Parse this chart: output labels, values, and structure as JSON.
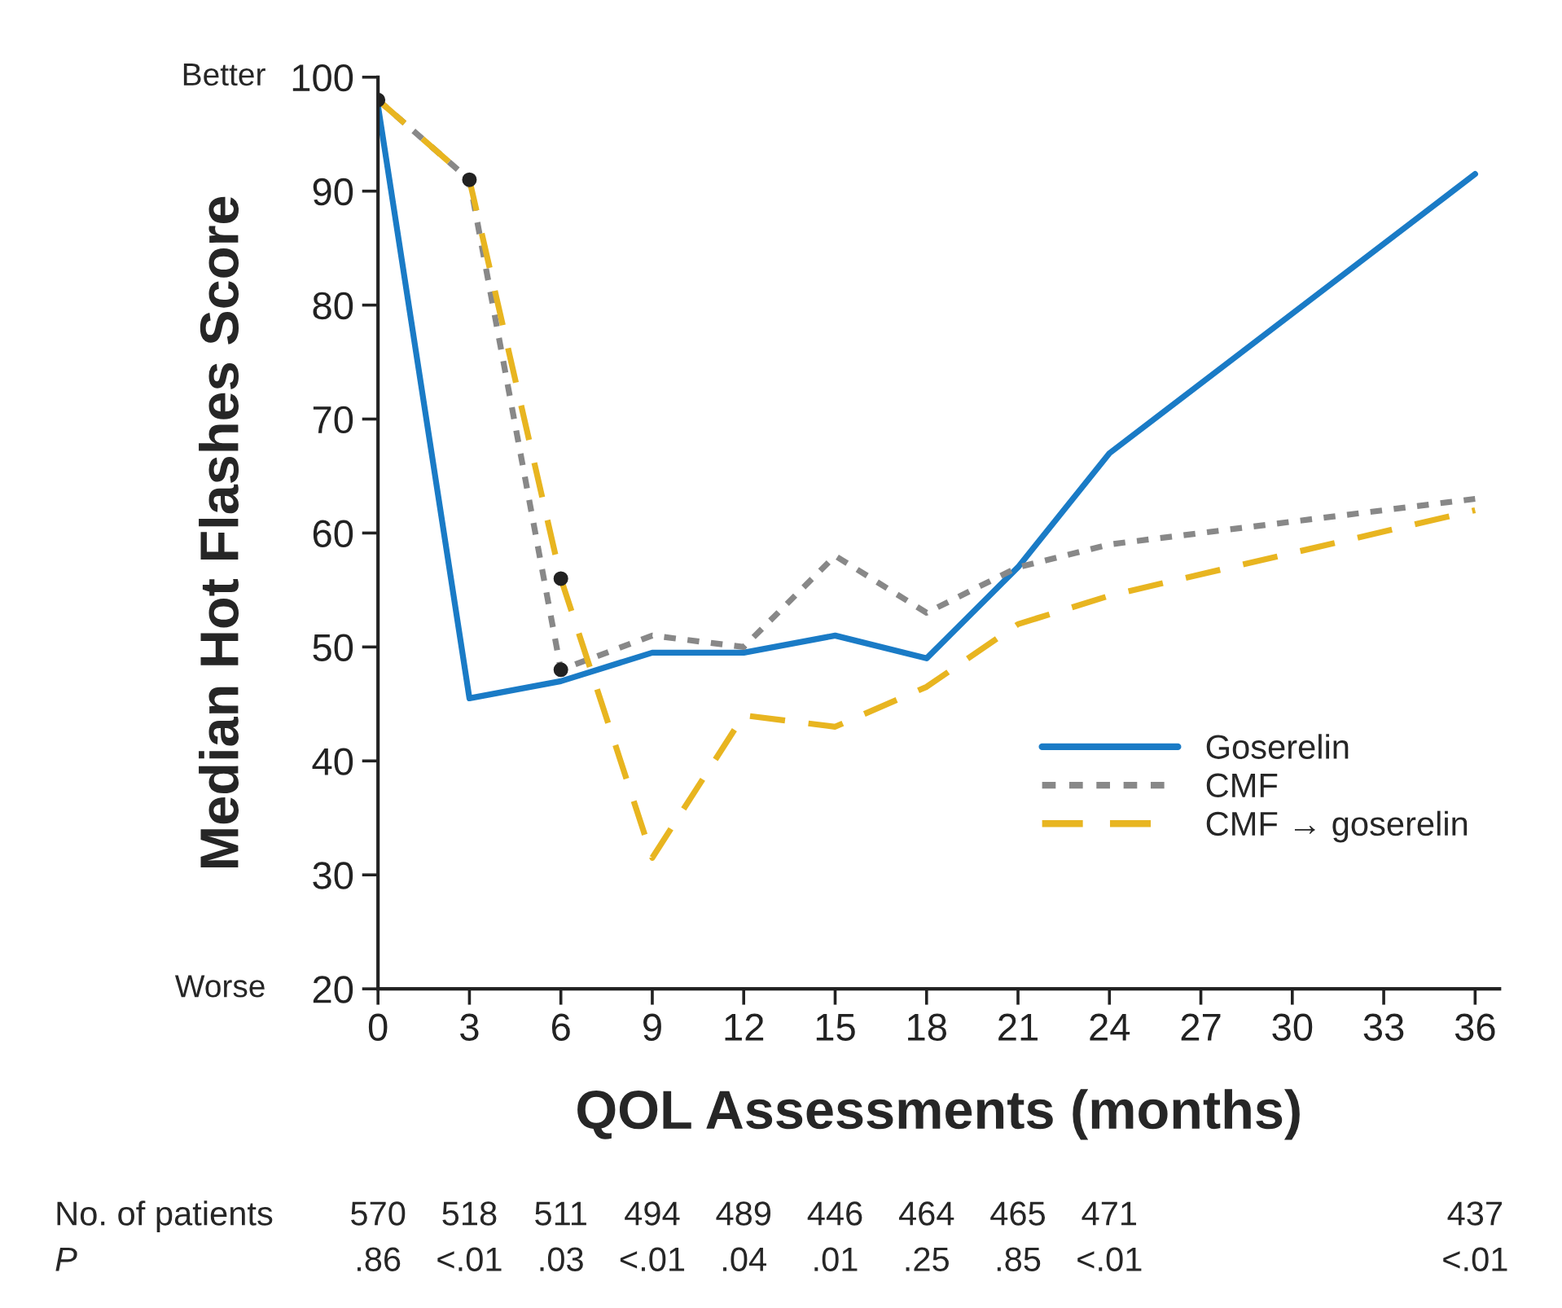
{
  "chart_data": {
    "type": "line",
    "xlabel": "QOL Assessments (months)",
    "ylabel": "Median Hot Flashes Score",
    "x": [
      0,
      3,
      6,
      9,
      12,
      15,
      18,
      21,
      24,
      36
    ],
    "series": [
      {
        "name": "Goserelin",
        "color": "#1a7bc6",
        "line_style": "solid",
        "values": [
          97.5,
          45.5,
          47,
          49.5,
          49.5,
          51,
          49,
          57,
          67,
          91.5
        ]
      },
      {
        "name": "CMF",
        "color": "#888888",
        "line_style": "dotted",
        "values": [
          98,
          91,
          48,
          51,
          50,
          58,
          53,
          57,
          59,
          63
        ]
      },
      {
        "name": "CMF → goserelin",
        "color": "#e8b520",
        "line_style": "dashed",
        "values": [
          98,
          91,
          56,
          31.5,
          44,
          43,
          46.5,
          52,
          54.5,
          62
        ]
      },
      {
        "type": "scatter",
        "color": "#222222",
        "marker": "circle",
        "x": [
          0,
          3,
          6,
          6
        ],
        "values": [
          98,
          91,
          48,
          56
        ]
      }
    ],
    "xlim": [
      0,
      36.8
    ],
    "xticks": [
      0,
      3,
      6,
      9,
      12,
      15,
      18,
      21,
      24,
      27,
      30,
      33,
      36
    ],
    "ylim": [
      20,
      100
    ],
    "yticks": [
      20,
      30,
      40,
      50,
      60,
      70,
      80,
      90,
      100
    ],
    "grid": false,
    "legend": "right",
    "annotations": [
      "Better",
      "Worse",
      "No. of patients",
      "570",
      "518",
      "511",
      "494",
      "489",
      "446",
      "464",
      "465",
      "471",
      "437",
      "P",
      ".86",
      "<.01",
      ".03",
      "<.01",
      ".04",
      ".01",
      ".25",
      ".85",
      "<.01",
      "<.01"
    ]
  }
}
